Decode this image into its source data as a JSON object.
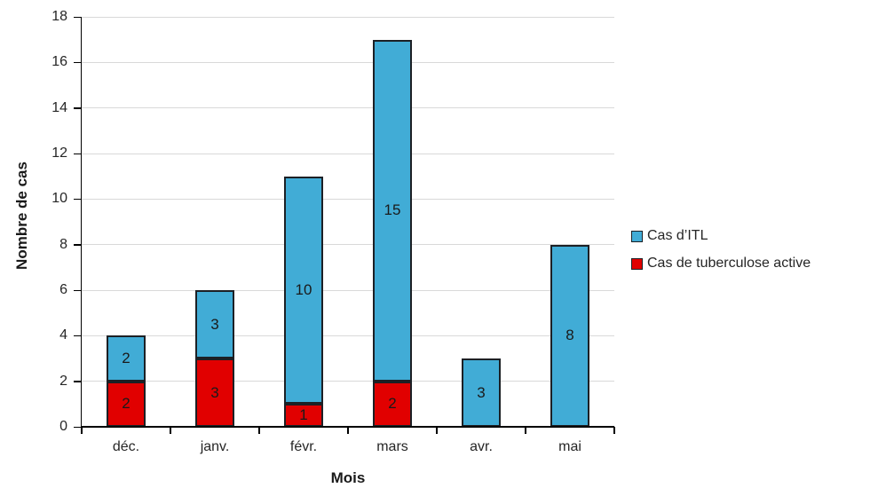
{
  "chart_data": {
    "type": "bar",
    "stacked": true,
    "title": "",
    "xlabel": "Mois",
    "ylabel": "Nombre de cas",
    "categories": [
      "déc.",
      "janv.",
      "févr.",
      "mars",
      "avr.",
      "mai"
    ],
    "series": [
      {
        "name": "Cas de tuberculose active",
        "color": "#e10000",
        "values": [
          2,
          3,
          1,
          2,
          0,
          0
        ]
      },
      {
        "name": "Cas d’ITL",
        "color": "#41acd6",
        "values": [
          2,
          3,
          10,
          15,
          3,
          8
        ]
      }
    ],
    "legend_items": [
      {
        "label": "Cas d’ITL",
        "color": "#41acd6"
      },
      {
        "label": "Cas de tuberculose active",
        "color": "#e10000"
      }
    ],
    "ylim": [
      0,
      18
    ],
    "yticks": [
      0,
      2,
      4,
      6,
      8,
      10,
      12,
      14,
      16,
      18
    ],
    "grid": true,
    "legend_position": "right",
    "data_labels": true,
    "bar_border_color": "#1c2025",
    "gridline_color": "#d9d9d9",
    "axis_color": "#000000",
    "text_color": "#262626"
  }
}
